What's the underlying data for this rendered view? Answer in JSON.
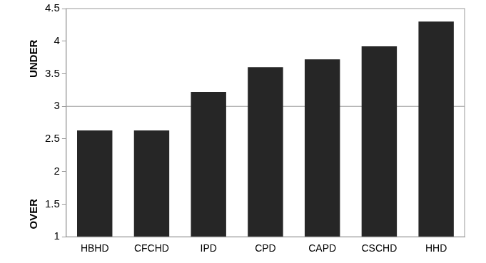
{
  "chart_data": {
    "type": "bar",
    "categories": [
      "HBHD",
      "CFCHD",
      "IPD",
      "CPD",
      "CAPD",
      "CSCHD",
      "HHD"
    ],
    "values": [
      2.63,
      2.63,
      3.22,
      3.6,
      3.72,
      3.92,
      4.3
    ],
    "color": "#262626",
    "ylim": [
      1,
      4.5
    ],
    "yticks": [
      1,
      1.5,
      2,
      2.5,
      3,
      3.5,
      4,
      4.5
    ],
    "grid": false,
    "reference_line": 3,
    "ylabel_top": "UNDER",
    "ylabel_bottom": "OVER"
  }
}
